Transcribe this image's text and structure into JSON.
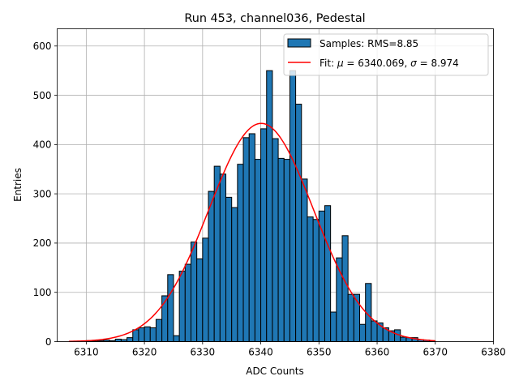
{
  "chart_data": {
    "type": "bar",
    "title": "Run 453, channel036, Pedestal",
    "xlabel": "ADC Counts",
    "ylabel": "Entries",
    "xlim": [
      6305,
      6380
    ],
    "ylim": [
      0,
      635
    ],
    "xticks": [
      6310,
      6320,
      6330,
      6340,
      6350,
      6360,
      6370,
      6380
    ],
    "yticks": [
      0,
      100,
      200,
      300,
      400,
      500,
      600
    ],
    "grid": true,
    "legend_position": "top-right",
    "bin_width": 1,
    "series": [
      {
        "name": "Samples: RMS=8.85",
        "type": "histogram",
        "color": "#1f77b4",
        "edgecolor": "#000000",
        "bins": [
          6310,
          6311,
          6312,
          6313,
          6314,
          6315,
          6316,
          6317,
          6318,
          6319,
          6320,
          6321,
          6322,
          6323,
          6324,
          6325,
          6326,
          6327,
          6328,
          6329,
          6330,
          6331,
          6332,
          6333,
          6334,
          6335,
          6336,
          6337,
          6338,
          6339,
          6340,
          6341,
          6342,
          6343,
          6344,
          6345,
          6346,
          6347,
          6348,
          6349,
          6350,
          6351,
          6352,
          6353,
          6354,
          6355,
          6356,
          6357,
          6358,
          6359,
          6360,
          6361,
          6362,
          6363,
          6364,
          6365,
          6366,
          6367,
          6368,
          6369
        ],
        "values": [
          2,
          1,
          2,
          3,
          2,
          5,
          4,
          8,
          24,
          28,
          30,
          28,
          45,
          93,
          136,
          12,
          143,
          157,
          202,
          168,
          210,
          305,
          356,
          340,
          293,
          272,
          360,
          414,
          422,
          370,
          432,
          550,
          412,
          372,
          370,
          550,
          482,
          330,
          253,
          248,
          265,
          276,
          60,
          170,
          215,
          96,
          96,
          35,
          118,
          42,
          38,
          28,
          22,
          24,
          9,
          8,
          8,
          4,
          3,
          1
        ]
      },
      {
        "name": "Fit: μ = 6340.069, σ = 8.974",
        "type": "line",
        "color": "#ff0000",
        "mu": 6340.069,
        "sigma": 8.974,
        "amplitude": 443,
        "x_range": [
          6307,
          6370
        ]
      }
    ],
    "legend": [
      {
        "label": "Samples: RMS=8.85",
        "marker": "patch",
        "color": "#1f77b4"
      },
      {
        "label_prefix": "Fit: ",
        "label_math": [
          {
            "sym": "μ",
            "text": " = 6340.069, "
          },
          {
            "sym": "σ",
            "text": " = 8.974"
          }
        ],
        "marker": "line",
        "color": "#ff0000"
      }
    ]
  }
}
